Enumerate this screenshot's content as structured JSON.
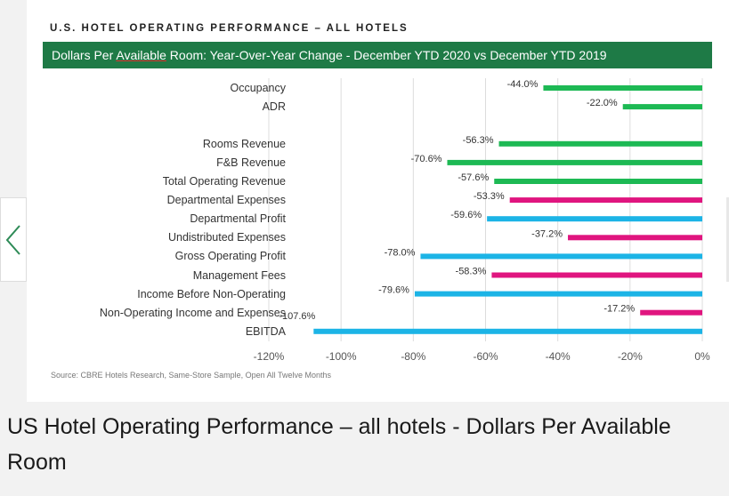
{
  "caption": "US Hotel Operating Performance – all hotels - Dollars Per Available Room",
  "nav": {
    "prev_icon": "chevron-left-icon",
    "accent": "#2e8b57"
  },
  "colors": {
    "banner": "#1e7a46",
    "green": "#1db954",
    "magenta": "#e0157f",
    "cyan": "#1cb4e6"
  },
  "chart_data": {
    "type": "bar",
    "orientation": "horizontal",
    "supertitle": "U.S. HOTEL OPERATING PERFORMANCE – ALL HOTELS",
    "title_prefix": "Dollars Per ",
    "title_underlined": "Available",
    "title_suffix": " Room:  Year-Over-Year Change - December YTD 2020 vs December YTD 2019",
    "categories": [
      "Occupancy",
      "ADR",
      "Rooms Revenue",
      "F&B Revenue",
      "Total Operating Revenue",
      "Departmental Expenses",
      "Departmental Profit",
      "Undistributed Expenses",
      "Gross Operating Profit",
      "Management Fees",
      "Income Before Non-Operating",
      "Non-Operating Income and Expenses",
      "EBITDA"
    ],
    "values": [
      -44.0,
      -22.0,
      -56.3,
      -70.6,
      -57.6,
      -53.3,
      -59.6,
      -37.2,
      -78.0,
      -58.3,
      -79.6,
      -17.2,
      -107.6
    ],
    "labels": [
      "-44.0%",
      "-22.0%",
      "-56.3%",
      "-70.6%",
      "-57.6%",
      "-53.3%",
      "-59.6%",
      "-37.2%",
      "-78.0%",
      "-58.3%",
      "-79.6%",
      "-17.2%",
      "-107.6%"
    ],
    "bar_colors": [
      "green",
      "green",
      "green",
      "green",
      "green",
      "magenta",
      "cyan",
      "magenta",
      "cyan",
      "magenta",
      "cyan",
      "magenta",
      "cyan"
    ],
    "xlim": [
      -120,
      0
    ],
    "xticks": [
      -120,
      -100,
      -80,
      -60,
      -40,
      -20,
      0
    ],
    "xtick_labels": [
      "-120%",
      "-100%",
      "-80%",
      "-60%",
      "-40%",
      "-20%",
      "0%"
    ],
    "grid": true,
    "source": "Source: CBRE Hotels Research, Same-Store Sample, Open All Twelve Months"
  }
}
